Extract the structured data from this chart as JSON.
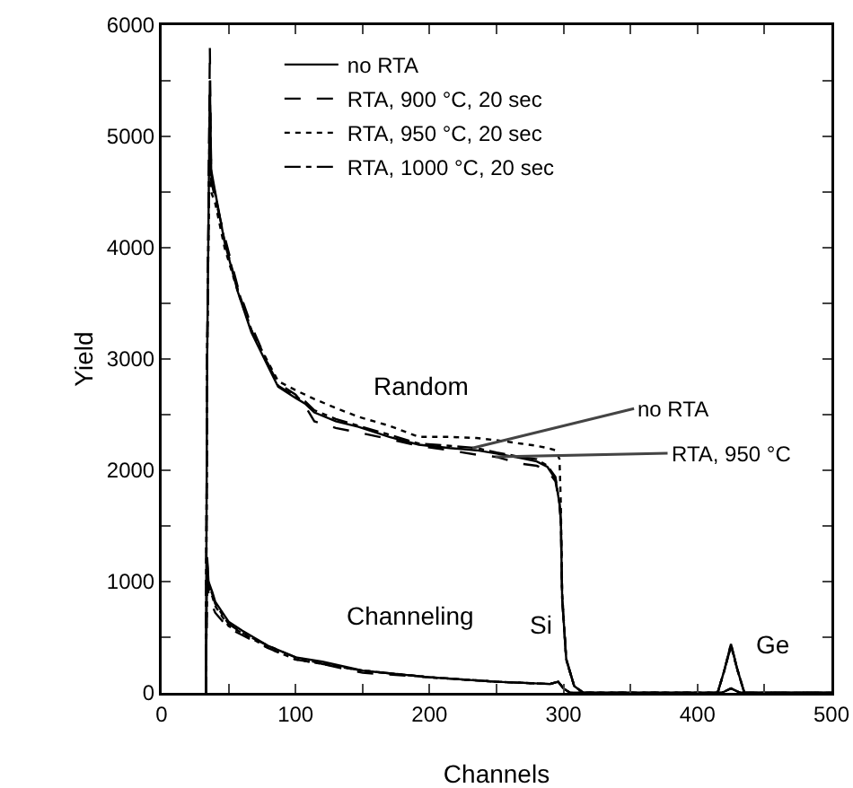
{
  "chart_data": {
    "type": "line",
    "xlabel": "Channels",
    "ylabel": "Yield",
    "series": [
      {
        "name": "no RTA",
        "color": "#000000",
        "line_style": "solid",
        "x": [
          33,
          34,
          36,
          37,
          40,
          47,
          57,
          67,
          80,
          87,
          100,
          107,
          114,
          130,
          147,
          170,
          192,
          215,
          235,
          250,
          268,
          280,
          288,
          294,
          297,
          298,
          299,
          302,
          308,
          315,
          400,
          415,
          420,
          425,
          430,
          435,
          450,
          500
        ],
        "values": [
          0,
          3000,
          5500,
          4700,
          4500,
          4050,
          3600,
          3240,
          2920,
          2750,
          2650,
          2600,
          2520,
          2440,
          2390,
          2300,
          2230,
          2200,
          2180,
          2150,
          2110,
          2080,
          2030,
          1920,
          1700,
          1550,
          850,
          310,
          60,
          0,
          0,
          0,
          200,
          440,
          200,
          0,
          0,
          0
        ]
      },
      {
        "name": "RTA, 900 °C, 20 sec",
        "color": "#000000",
        "line_style": "dashed",
        "x": [
          33,
          34,
          36,
          37,
          40,
          47,
          57,
          67,
          80,
          87,
          100,
          107,
          114,
          130,
          147,
          170,
          192,
          215,
          235,
          250,
          268,
          280,
          288,
          294,
          297,
          298,
          299,
          302,
          308,
          315,
          400,
          415,
          420,
          425,
          430,
          435,
          450,
          500
        ],
        "values": [
          0,
          3000,
          5800,
          4600,
          4440,
          4100,
          3640,
          3300,
          2940,
          2780,
          2680,
          2580,
          2440,
          2380,
          2340,
          2280,
          2220,
          2180,
          2140,
          2120,
          2060,
          2040,
          2000,
          1900,
          1700,
          1550,
          850,
          300,
          60,
          0,
          0,
          0,
          200,
          420,
          200,
          0,
          0,
          0
        ]
      },
      {
        "name": "RTA, 950 °C, 20 sec",
        "color": "#000000",
        "line_style": "dotted",
        "x": [
          33,
          34,
          36,
          37,
          40,
          47,
          57,
          67,
          80,
          87,
          100,
          107,
          114,
          130,
          147,
          170,
          192,
          215,
          235,
          250,
          268,
          280,
          288,
          294,
          297,
          298,
          299,
          302,
          308,
          315,
          400,
          415,
          420,
          425,
          430,
          435,
          450,
          500
        ],
        "values": [
          0,
          3000,
          5200,
          4500,
          4400,
          4000,
          3600,
          3260,
          2960,
          2800,
          2720,
          2680,
          2640,
          2560,
          2480,
          2400,
          2300,
          2300,
          2290,
          2270,
          2240,
          2220,
          2200,
          2180,
          2100,
          1700,
          900,
          300,
          60,
          0,
          0,
          0,
          200,
          420,
          200,
          0,
          0,
          0
        ]
      },
      {
        "name": "RTA, 1000 °C, 20 sec",
        "color": "#000000",
        "line_style": "dashdot",
        "x": [
          33,
          34,
          36,
          37,
          40,
          47,
          57,
          67,
          80,
          87,
          100,
          107,
          114,
          130,
          147,
          170,
          192,
          215,
          235,
          250,
          268,
          280,
          288,
          294,
          297,
          298,
          299,
          302,
          308,
          315,
          400,
          415,
          420,
          425,
          430,
          435,
          450,
          500
        ],
        "values": [
          0,
          3000,
          5400,
          4660,
          4480,
          4060,
          3620,
          3260,
          2940,
          2760,
          2660,
          2620,
          2540,
          2460,
          2400,
          2320,
          2240,
          2220,
          2200,
          2160,
          2120,
          2100,
          2040,
          1940,
          1700,
          1550,
          850,
          300,
          60,
          0,
          0,
          0,
          200,
          440,
          200,
          0,
          0,
          0
        ]
      },
      {
        "color": "#000000",
        "line_style": "solid",
        "x": [
          33,
          34,
          35,
          38,
          40,
          50,
          60,
          80,
          100,
          120,
          150,
          200,
          250,
          290,
          296,
          300,
          305,
          310,
          400,
          418,
          425,
          432,
          450,
          500
        ],
        "values": [
          0,
          1220,
          1000,
          900,
          820,
          640,
          560,
          420,
          320,
          280,
          200,
          140,
          100,
          80,
          100,
          40,
          0,
          0,
          0,
          0,
          40,
          0,
          0,
          0
        ]
      },
      {
        "color": "#000000",
        "line_style": "dashed",
        "x": [
          33,
          34,
          35,
          38,
          40,
          50,
          60,
          80,
          100,
          120,
          150,
          200,
          250,
          290,
          296,
          300,
          305,
          310,
          400,
          418,
          425,
          432,
          450,
          500
        ],
        "values": [
          0,
          1100,
          900,
          780,
          720,
          580,
          520,
          400,
          300,
          260,
          180,
          140,
          100,
          80,
          100,
          40,
          0,
          0,
          0,
          0,
          40,
          0,
          0,
          0
        ]
      },
      {
        "color": "#000000",
        "line_style": "dotted",
        "x": [
          33,
          34,
          35,
          38,
          40,
          50,
          60,
          80,
          100,
          120,
          150,
          200,
          250,
          290,
          296,
          300,
          305,
          310,
          400,
          418,
          425,
          432,
          450,
          500
        ],
        "values": [
          0,
          1160,
          960,
          860,
          780,
          600,
          540,
          400,
          300,
          260,
          200,
          140,
          100,
          80,
          100,
          40,
          0,
          0,
          0,
          0,
          40,
          0,
          0,
          0
        ]
      },
      {
        "color": "#000000",
        "line_style": "dashdot",
        "x": [
          33,
          34,
          35,
          38,
          40,
          50,
          60,
          80,
          100,
          120,
          150,
          200,
          250,
          290,
          296,
          300,
          305,
          310,
          400,
          418,
          425,
          432,
          450,
          500
        ],
        "values": [
          0,
          1180,
          980,
          880,
          800,
          620,
          540,
          420,
          320,
          260,
          200,
          140,
          100,
          80,
          100,
          40,
          0,
          0,
          0,
          0,
          40,
          0,
          0,
          0
        ]
      }
    ],
    "xlim": [
      0,
      500
    ],
    "ylim": [
      0,
      6000
    ],
    "xticks": [
      0,
      {
        "value": 50,
        "label": null
      },
      100,
      {
        "value": 150,
        "label": null
      },
      200,
      {
        "value": 250,
        "label": null
      },
      300,
      {
        "value": 350,
        "label": null
      },
      400,
      {
        "value": 450,
        "label": null
      },
      500
    ],
    "yticks": [
      0,
      {
        "value": 500,
        "label": null
      },
      1000,
      {
        "value": 1500,
        "label": null
      },
      2000,
      {
        "value": 2500,
        "label": null
      },
      3000,
      {
        "value": 3500,
        "label": null
      },
      4000,
      {
        "value": 4500,
        "label": null
      },
      5000,
      {
        "value": 5500,
        "label": null
      },
      6000
    ],
    "annotations": [
      "Random",
      "Channeling",
      "Si",
      "Ge",
      {
        "text": "no RTA",
        "x": 232,
        "y": 2200
      },
      {
        "text": "RTA, 950 °C",
        "x": 249,
        "y": 2120
      }
    ],
    "legend": "top left",
    "grid": false,
    "marker": "none"
  }
}
